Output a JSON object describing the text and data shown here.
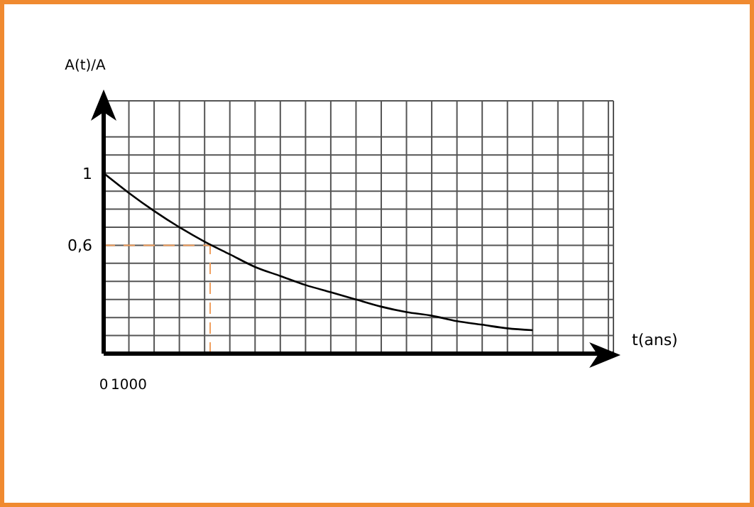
{
  "chart_data": {
    "type": "line",
    "xlabel": "t(ans)",
    "ylabel": "A(t)/A",
    "x": [
      0,
      1000,
      2000,
      3000,
      4000,
      5000,
      6000,
      7000,
      8000,
      9000,
      10000,
      11000,
      12000,
      13000,
      14000,
      15000,
      16000,
      17000
    ],
    "series": [
      {
        "color": "#000000",
        "values": [
          1,
          0.89,
          0.79,
          0.7,
          0.62,
          0.55,
          0.48,
          0.43,
          0.38,
          0.34,
          0.3,
          0.26,
          0.23,
          0.21,
          0.18,
          0.16,
          0.14,
          0.13
        ]
      }
    ],
    "xlim": [
      0,
      20200
    ],
    "xticks": [
      {
        "value": 0,
        "label": "0"
      },
      {
        "value": 1000,
        "label": "1000"
      },
      {
        "value": 2000,
        "label": null
      },
      {
        "value": 3000,
        "label": null
      },
      {
        "value": 4000,
        "label": null
      },
      {
        "value": 5000,
        "label": null
      },
      {
        "value": 6000,
        "label": null
      },
      {
        "value": 7000,
        "label": null
      },
      {
        "value": 8000,
        "label": null
      },
      {
        "value": 9000,
        "label": null
      },
      {
        "value": 10000,
        "label": null
      },
      {
        "value": 11000,
        "label": null
      },
      {
        "value": 12000,
        "label": null
      },
      {
        "value": 13000,
        "label": null
      },
      {
        "value": 14000,
        "label": null
      },
      {
        "value": 15000,
        "label": null
      },
      {
        "value": 16000,
        "label": null
      },
      {
        "value": 17000,
        "label": null
      },
      {
        "value": 18000,
        "label": null
      },
      {
        "value": 19000,
        "label": null
      },
      {
        "value": 20000,
        "label": null
      }
    ],
    "ylim": [
      0,
      1.4
    ],
    "yticks": [
      {
        "value": 0,
        "label": null
      },
      {
        "value": 0.1,
        "label": null
      },
      {
        "value": 0.2,
        "label": null
      },
      {
        "value": 0.3,
        "label": null
      },
      {
        "value": 0.4,
        "label": null
      },
      {
        "value": 0.5,
        "label": null
      },
      {
        "value": 0.6,
        "label": "0,6"
      },
      {
        "value": 0.7,
        "label": null
      },
      {
        "value": 0.8,
        "label": null
      },
      {
        "value": 0.9,
        "label": null
      },
      {
        "value": 1,
        "label": "1"
      },
      {
        "value": 1.1,
        "label": null
      },
      {
        "value": 1.2,
        "label": null
      }
    ],
    "grid": true,
    "marker": "none",
    "line_style": "solid",
    "ref_lines": [
      {
        "axis": "y",
        "value": 0.6,
        "color": "#f0a060",
        "line_style": "dashed"
      },
      {
        "axis": "x",
        "value": 4220,
        "color": "#f0a060",
        "line_style": "dashed"
      }
    ]
  }
}
